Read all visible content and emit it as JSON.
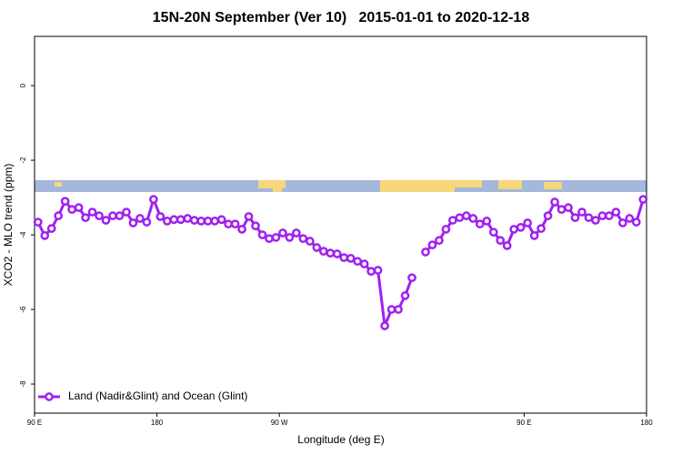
{
  "chart_data": {
    "type": "line",
    "title": "15N-20N September (Ver 10)   2015-01-01 to 2020-12-18",
    "xlabel": "Longitude (deg E)",
    "ylabel": "XCO2 - MLO trend (ppm)",
    "xlim": [
      90,
      540
    ],
    "xticks": [
      {
        "value": 90,
        "label": "90 E"
      },
      {
        "value": 180,
        "label": "180"
      },
      {
        "value": 270,
        "label": "90 W"
      },
      {
        "value": 450,
        "label": "90 E"
      },
      {
        "value": 540,
        "label": "180"
      }
    ],
    "ylim": [
      -8.78,
      1.32
    ],
    "yticks": [
      0,
      -2,
      -4,
      -6,
      -8
    ],
    "legend": "bottomleft",
    "x": [
      92.5,
      97.5,
      102.5,
      107.5,
      112.5,
      117.5,
      122.5,
      127.5,
      132.5,
      137.5,
      142.5,
      147.5,
      152.5,
      157.5,
      162.5,
      167.5,
      172.5,
      177.5,
      182.5,
      187.5,
      192.5,
      197.5,
      202.5,
      207.5,
      212.5,
      217.5,
      222.5,
      227.5,
      232.5,
      237.5,
      242.5,
      247.5,
      252.5,
      257.5,
      262.5,
      267.5,
      272.5,
      277.5,
      282.5,
      287.5,
      292.5,
      297.5,
      302.5,
      307.5,
      312.5,
      317.5,
      322.5,
      327.5,
      332.5,
      337.5,
      342.5,
      347.5,
      352.5,
      357.5,
      362.5,
      367.5,
      372.5,
      377.5,
      382.5,
      387.5,
      392.5,
      397.5,
      402.5,
      407.5,
      412.5,
      417.5,
      422.5,
      427.5,
      432.5,
      437.5,
      442.5,
      447.5,
      452.5,
      457.5,
      462.5,
      467.5,
      472.5,
      477.5,
      482.5,
      487.5,
      492.5,
      497.5,
      502.5,
      507.5,
      512.5,
      517.5,
      522.5,
      527.5,
      532.5,
      537.5
    ],
    "series": [
      {
        "name": "Land (Nadir&Glint) and Ocean (Glint)",
        "color": "#a020f0",
        "values": [
          -3.66,
          -4.02,
          -3.83,
          -3.49,
          -3.1,
          -3.32,
          -3.27,
          -3.54,
          -3.39,
          -3.49,
          -3.61,
          -3.49,
          -3.49,
          -3.39,
          -3.68,
          -3.56,
          -3.66,
          -3.05,
          -3.51,
          -3.63,
          -3.59,
          -3.59,
          -3.56,
          -3.61,
          -3.63,
          -3.63,
          -3.63,
          -3.59,
          -3.71,
          -3.71,
          -3.85,
          -3.51,
          -3.76,
          -4.0,
          -4.1,
          -4.07,
          -3.95,
          -4.07,
          -3.95,
          -4.1,
          -4.17,
          -4.34,
          -4.44,
          -4.49,
          -4.51,
          -4.61,
          -4.63,
          -4.71,
          -4.78,
          -4.98,
          -4.95,
          -6.44,
          -6.0,
          -6.0,
          -5.63,
          -5.15,
          null,
          -4.46,
          -4.27,
          -4.15,
          -3.85,
          -3.61,
          -3.54,
          -3.49,
          -3.56,
          -3.71,
          -3.63,
          -3.93,
          -4.15,
          -4.29,
          -3.85,
          -3.8,
          -3.68,
          -4.02,
          -3.83,
          -3.49,
          -3.12,
          -3.32,
          -3.27,
          -3.54,
          -3.39,
          -3.54,
          -3.61,
          -3.49,
          -3.49,
          -3.39,
          -3.68,
          -3.56,
          -3.66,
          -3.05
        ]
      }
    ]
  }
}
